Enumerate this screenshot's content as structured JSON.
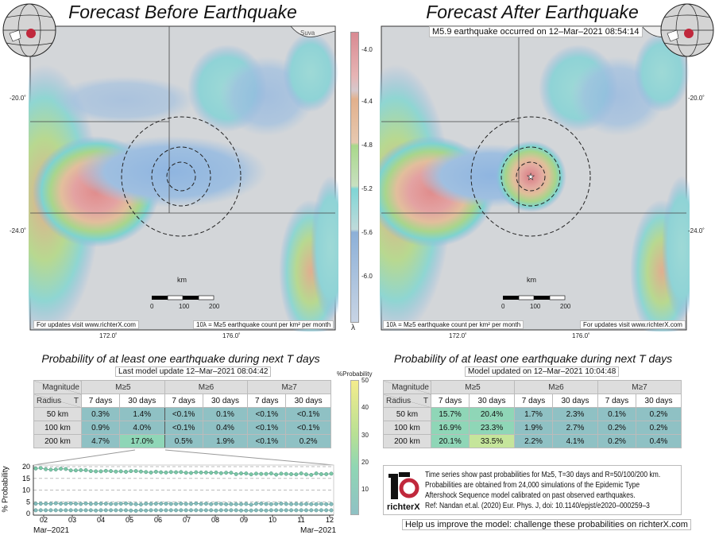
{
  "left": {
    "title": "Forecast Before Earthquake",
    "table_title": "Probability of at least one earthquake during next T days",
    "update": "Last model update 12–Mar–2021 08:04:42",
    "footer_left": "For updates visit www.richterX.com",
    "footer_right": "10λ = M≥5 earthquake count per km² per month",
    "rows": [
      [
        "50 km",
        "0.3%",
        "1.4%",
        "<0.1%",
        "0.1%",
        "<0.1%",
        "<0.1%"
      ],
      [
        "100 km",
        "0.9%",
        "4.0%",
        "<0.1%",
        "0.4%",
        "<0.1%",
        "<0.1%"
      ],
      [
        "200 km",
        "4.7%",
        "17.0%",
        "0.5%",
        "1.9%",
        "<0.1%",
        "0.2%"
      ]
    ]
  },
  "right": {
    "title": "Forecast After Earthquake",
    "event": "M5.9 earthquake occurred on 12–Mar–2021 08:54:14",
    "table_title": "Probability of at least one earthquake during next T days",
    "update": "Model updated on 12–Mar–2021 10:04:48",
    "footer_left": "10λ = M≥5 earthquake count per km² per month",
    "footer_right": "For updates visit www.richterX.com",
    "rows": [
      [
        "50 km",
        "15.7%",
        "20.4%",
        "1.7%",
        "2.3%",
        "0.1%",
        "0.2%"
      ],
      [
        "100 km",
        "16.9%",
        "23.3%",
        "1.9%",
        "2.7%",
        "0.2%",
        "0.2%"
      ],
      [
        "200 km",
        "20.1%",
        "33.5%",
        "2.2%",
        "4.1%",
        "0.2%",
        "0.4%"
      ]
    ]
  },
  "table": {
    "magnitude": "Magnitude",
    "radius": "Radius",
    "t": "T",
    "mags": [
      "M≥5",
      "M≥6",
      "M≥7"
    ],
    "days": [
      "7 days",
      "30 days"
    ]
  },
  "map": {
    "lat_labels": [
      "-20.0˚",
      "-24.0˚"
    ],
    "lon_labels": [
      "172.0˚",
      "176.0˚"
    ],
    "km": "km",
    "scale": [
      "0",
      "100",
      "200"
    ],
    "city": "Suva"
  },
  "colorbar": {
    "ticks": [
      "-4.0",
      "-4.4",
      "-4.8",
      "-5.2",
      "-5.6",
      "-6.0"
    ],
    "symbol": "λ"
  },
  "probbar": {
    "label": "%Probability",
    "ticks": [
      "50",
      "40",
      "30",
      "20",
      "10"
    ]
  },
  "chart_data": {
    "type": "line",
    "ylabel": "% Probability",
    "ylim": [
      0,
      20
    ],
    "yticks": [
      "20",
      "15",
      "10",
      "5",
      "0"
    ],
    "xticks": [
      "02",
      "03",
      "04",
      "05",
      "06",
      "07",
      "08",
      "09",
      "10",
      "11",
      "12"
    ],
    "xlabel_left": "Mar–2021",
    "xlabel_right": "Mar–2021",
    "series": [
      {
        "name": "R=200 km",
        "values": [
          19.2,
          19.4,
          18.9,
          18.7,
          18.8,
          19.1,
          19.0,
          18.4,
          18.4,
          18.5,
          18.5,
          18.1,
          18.0,
          18.0,
          18.2,
          18.1,
          17.9,
          18.0,
          17.8,
          18.1,
          18.1,
          17.9,
          17.7,
          17.5,
          17.8,
          17.6,
          17.5,
          17.7,
          17.6,
          17.7,
          17.4,
          17.3,
          17.6,
          17.5,
          17.5,
          17.4,
          17.5,
          17.2,
          17.4,
          17.4,
          16.8,
          17.1,
          17.1,
          16.7,
          17.0,
          16.9,
          16.9,
          17.1,
          16.6,
          17.0,
          16.9,
          16.8,
          16.7,
          17.1,
          16.7,
          16.5,
          17.1,
          16.8,
          16.8,
          17.0
        ]
      },
      {
        "name": "R=100 km",
        "values": [
          4.2,
          4.2,
          4.2,
          4.2,
          4.4,
          4.2,
          4.2,
          4.3,
          4.2,
          4.1,
          4.3,
          4.1,
          4.2,
          4.2,
          4.2,
          4.1,
          4.1,
          4.2,
          4.3,
          4.1,
          4.0,
          3.9,
          4.2,
          4.1,
          4.2,
          4.2,
          4.2,
          4.1,
          4.1,
          4.2,
          4.1,
          4.1,
          4.3,
          4.1,
          4.2,
          4.0,
          4.2,
          4.1,
          4.0,
          4.0,
          4.0,
          4.0,
          4.1,
          3.8,
          4.2,
          4.2,
          4.1,
          4.0,
          4.1,
          4.2,
          4.1,
          4.0,
          4.1,
          4.0,
          4.1,
          4.0,
          4.0,
          4.1,
          4.0,
          4.0
        ]
      },
      {
        "name": "R=50 km",
        "values": [
          1.4,
          1.4,
          1.4,
          1.4,
          1.4,
          1.4,
          1.4,
          1.4,
          1.4,
          1.4,
          1.4,
          1.4,
          1.3,
          1.4,
          1.4,
          1.4,
          1.4,
          1.4,
          1.4,
          1.3,
          1.2,
          1.4,
          1.3,
          1.4,
          1.4,
          1.4,
          1.4,
          1.4,
          1.4,
          1.4,
          1.4,
          1.4,
          1.4,
          1.4,
          1.4,
          1.4,
          1.3,
          1.4,
          1.4,
          1.4,
          1.4,
          1.3,
          1.3,
          1.3,
          1.4,
          1.4,
          1.3,
          1.4,
          1.4,
          1.4,
          1.4,
          1.4,
          1.4,
          1.4,
          1.4,
          1.4,
          1.4,
          1.4,
          1.4,
          1.4
        ]
      }
    ]
  },
  "info": {
    "lines": [
      "Time series show past probabilities for M≥5, T=30 days and R=50/100/200 km.",
      "Probabilities are obtained from 24,000 simulations of the Epidemic Type",
      "Aftershock Sequence model calibrated on past observed earthquakes.",
      "Ref: Nandan et.al. (2020) Eur. Phys. J, doi: 10.1140/epjst/e2020–000259–3"
    ],
    "logo": "richterX",
    "cta": "Help us improve the model: challenge these probabilities on richterX.com"
  },
  "colors": {
    "teal": "#8fc1c4",
    "mint": "#8fd6b7",
    "lime": "#c5e59b",
    "accent": "#c0283c"
  }
}
